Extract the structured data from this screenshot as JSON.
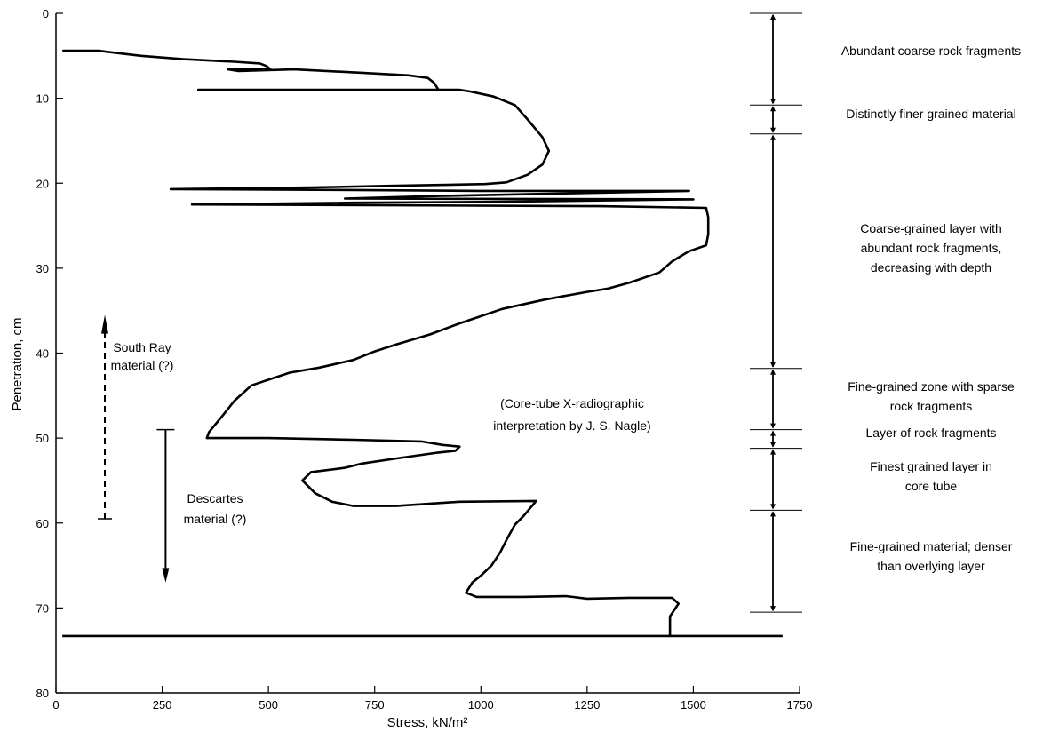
{
  "chart_data": {
    "type": "line",
    "title": "",
    "xlabel": "Stress, kN/m²",
    "ylabel": "Penetration, cm",
    "xlim": [
      0,
      1750
    ],
    "ylim": [
      80,
      0
    ],
    "y_inverted": true,
    "x_ticks": [
      0,
      250,
      500,
      750,
      1000,
      1250,
      1500,
      1750
    ],
    "y_ticks": [
      0,
      10,
      20,
      30,
      40,
      50,
      60,
      70,
      80
    ],
    "grid": false,
    "series": [
      {
        "color": "#000000",
        "points": [
          [
            15,
            4.4
          ],
          [
            100,
            4.4
          ],
          [
            200,
            5.0
          ],
          [
            300,
            5.4
          ],
          [
            420,
            5.7
          ],
          [
            480,
            5.9
          ],
          [
            495,
            6.2
          ],
          [
            505,
            6.6
          ],
          [
            405,
            6.6
          ],
          [
            430,
            6.8
          ],
          [
            560,
            6.6
          ],
          [
            720,
            7.0
          ],
          [
            830,
            7.3
          ],
          [
            875,
            7.6
          ],
          [
            890,
            8.2
          ],
          [
            900,
            9.0
          ],
          [
            335,
            9.0
          ],
          [
            520,
            9.0
          ],
          [
            800,
            9.0
          ],
          [
            950,
            9.0
          ],
          [
            975,
            9.2
          ],
          [
            1030,
            9.8
          ],
          [
            1080,
            10.8
          ],
          [
            1110,
            12.5
          ],
          [
            1145,
            14.6
          ],
          [
            1160,
            16.2
          ],
          [
            1145,
            17.8
          ],
          [
            1110,
            19.0
          ],
          [
            1060,
            19.9
          ],
          [
            1010,
            20.1
          ],
          [
            800,
            20.3
          ],
          [
            600,
            20.5
          ],
          [
            270,
            20.7
          ],
          [
            700,
            20.8
          ],
          [
            1000,
            20.9
          ],
          [
            1490,
            20.9
          ],
          [
            1200,
            21.2
          ],
          [
            900,
            21.5
          ],
          [
            680,
            21.8
          ],
          [
            1500,
            21.9
          ],
          [
            1000,
            22.2
          ],
          [
            700,
            22.3
          ],
          [
            320,
            22.5
          ],
          [
            800,
            22.6
          ],
          [
            1280,
            22.7
          ],
          [
            1530,
            22.9
          ],
          [
            1535,
            24.0
          ],
          [
            1535,
            26.0
          ],
          [
            1530,
            27.3
          ],
          [
            1490,
            28.0
          ],
          [
            1450,
            29.2
          ],
          [
            1420,
            30.5
          ],
          [
            1350,
            31.7
          ],
          [
            1300,
            32.4
          ],
          [
            1250,
            32.8
          ],
          [
            1150,
            33.7
          ],
          [
            1050,
            34.8
          ],
          [
            950,
            36.5
          ],
          [
            880,
            37.8
          ],
          [
            800,
            39.0
          ],
          [
            750,
            39.8
          ],
          [
            700,
            40.8
          ],
          [
            620,
            41.7
          ],
          [
            550,
            42.3
          ],
          [
            460,
            43.8
          ],
          [
            420,
            45.6
          ],
          [
            390,
            47.5
          ],
          [
            360,
            49.3
          ],
          [
            355,
            50.0
          ],
          [
            500,
            50.0
          ],
          [
            700,
            50.2
          ],
          [
            860,
            50.4
          ],
          [
            910,
            50.8
          ],
          [
            950,
            51.0
          ],
          [
            940,
            51.5
          ],
          [
            900,
            51.7
          ],
          [
            800,
            52.4
          ],
          [
            720,
            53.0
          ],
          [
            680,
            53.5
          ],
          [
            600,
            54.0
          ],
          [
            580,
            55.0
          ],
          [
            610,
            56.5
          ],
          [
            650,
            57.5
          ],
          [
            700,
            58.0
          ],
          [
            800,
            58.0
          ],
          [
            950,
            57.5
          ],
          [
            1130,
            57.4
          ],
          [
            1100,
            59.2
          ],
          [
            1080,
            60.2
          ],
          [
            1060,
            62.0
          ],
          [
            1045,
            63.5
          ],
          [
            1025,
            65.0
          ],
          [
            1000,
            66.2
          ],
          [
            980,
            67.0
          ],
          [
            965,
            68.2
          ],
          [
            990,
            68.7
          ],
          [
            1100,
            68.7
          ],
          [
            1200,
            68.6
          ],
          [
            1250,
            68.9
          ],
          [
            1350,
            68.8
          ],
          [
            1450,
            68.8
          ],
          [
            1465,
            69.5
          ],
          [
            1445,
            71.0
          ],
          [
            1445,
            73.3
          ]
        ]
      }
    ],
    "base_line": {
      "y": 73.3,
      "x_from": 15,
      "x_to": 1710
    }
  },
  "left_annotations": {
    "south_ray": [
      "South Ray",
      "material (?)"
    ],
    "descartes": [
      "Descartes",
      "material (?)"
    ]
  },
  "center_note": [
    "(Core-tube X-radiographic",
    "interpretation by  J. S. Nagle)"
  ],
  "layers": {
    "boundaries": [
      0,
      10.8,
      14.2,
      41.8,
      49.0,
      51.2,
      58.5,
      70.5
    ],
    "labels": [
      [
        "Abundant coarse rock fragments"
      ],
      [
        "Distinctly finer grained material"
      ],
      [
        "Coarse-grained layer  with",
        "abundant rock  fragments,",
        "decreasing with depth"
      ],
      [
        "Fine-grained zone with sparse",
        "rock fragments"
      ],
      [
        "Layer of rock fragments"
      ],
      [
        "Finest grained layer in",
        "core tube"
      ],
      [
        "Fine-grained material;  denser",
        "than overlying layer"
      ]
    ]
  }
}
